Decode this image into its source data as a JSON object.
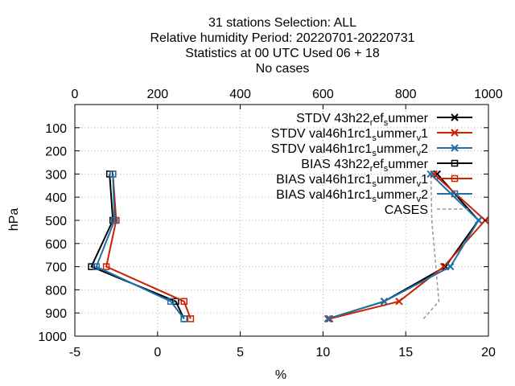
{
  "chart_data": {
    "type": "line",
    "title_lines": [
      "31 stations Selection: ALL",
      "Relative humidity  Period: 20220701-20220731",
      "Statistics at 00 UTC  Used  06  + 18",
      "No cases"
    ],
    "xlabel": "%",
    "ylabel": "hPa",
    "xlim": [
      -5,
      20
    ],
    "ylim": [
      1000,
      0
    ],
    "x_ticks": [
      "-5",
      "0",
      "5",
      "10",
      "15",
      "20"
    ],
    "y_ticks": [
      "100",
      "200",
      "300",
      "400",
      "500",
      "600",
      "700",
      "800",
      "900",
      "1000"
    ],
    "x2lim": [
      0,
      1000
    ],
    "x2_ticks": [
      "0",
      "200",
      "400",
      "600",
      "800",
      "1000"
    ],
    "grid": true,
    "legend_position": "top-right",
    "series": [
      {
        "name": "STDV 43h22_ref_summer",
        "color": "#000000",
        "marker": "x",
        "points": [
          [
            16.9,
            300
          ],
          [
            19.4,
            500
          ],
          [
            17.4,
            700
          ],
          [
            13.7,
            850
          ],
          [
            10.3,
            925
          ]
        ]
      },
      {
        "name": "STDV val46h1rc1_summer_v1",
        "color": "#cc2200",
        "marker": "x",
        "points": [
          [
            16.7,
            300
          ],
          [
            19.8,
            500
          ],
          [
            17.3,
            700
          ],
          [
            14.6,
            850
          ],
          [
            10.4,
            925
          ]
        ]
      },
      {
        "name": "STDV val46h1rc1_summer_v2",
        "color": "#1f6fa8",
        "marker": "x",
        "points": [
          [
            16.5,
            300
          ],
          [
            19.4,
            500
          ],
          [
            17.7,
            700
          ],
          [
            13.7,
            850
          ],
          [
            10.3,
            925
          ]
        ]
      },
      {
        "name": "BIAS 43h22_ref_summer",
        "color": "#000000",
        "marker": "square",
        "points": [
          [
            -2.9,
            300
          ],
          [
            -2.7,
            500
          ],
          [
            -4.0,
            700
          ],
          [
            1.1,
            850
          ],
          [
            1.6,
            925
          ]
        ]
      },
      {
        "name": "BIAS val46h1rc1_summer_v1",
        "color": "#cc2200",
        "marker": "square",
        "points": [
          [
            -2.7,
            300
          ],
          [
            -2.5,
            500
          ],
          [
            -3.1,
            700
          ],
          [
            1.6,
            850
          ],
          [
            2.0,
            925
          ]
        ]
      },
      {
        "name": "BIAS val46h1rc1_summer_v2",
        "color": "#1f6fa8",
        "marker": "square",
        "points": [
          [
            -2.7,
            300
          ],
          [
            -2.6,
            500
          ],
          [
            -3.7,
            700
          ],
          [
            0.8,
            850
          ],
          [
            1.6,
            925
          ]
        ]
      },
      {
        "name": "CASES",
        "color": "#999999",
        "marker": "none",
        "dashed": true,
        "axis": "x2",
        "points": [
          [
            843,
            925
          ],
          [
            880,
            850
          ],
          [
            873,
            700
          ],
          [
            863,
            500
          ],
          [
            861,
            300
          ]
        ]
      }
    ]
  }
}
